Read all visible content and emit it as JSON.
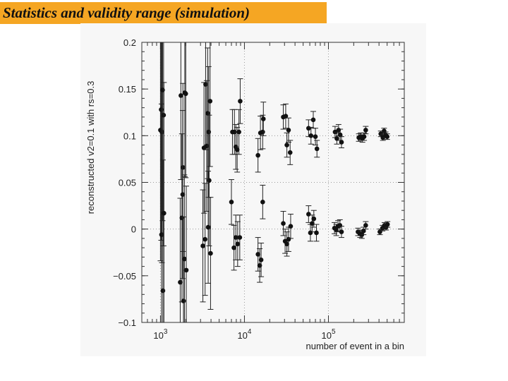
{
  "title": "Statistics and validity range   (simulation)",
  "chart_data": {
    "type": "scatter",
    "xlabel": "number of event in a bin",
    "ylabel": "reconstructed v2=0.1 with rs=0.3",
    "x_scale": "log",
    "xlim": [
      600,
      800000
    ],
    "ylim": [
      -0.1,
      0.2
    ],
    "grid": "dotted at x-decades and y=0.1, 0.05, 0",
    "yticks": [
      "-0.1",
      "-0.05",
      "0",
      "0.05",
      "0.1",
      "0.15",
      "0.2"
    ],
    "xticks": [
      "10^3",
      "10^4",
      "10^5"
    ],
    "series": [
      {
        "values": [
          {
            "x": 1000,
            "y": 0.106,
            "err": 0.14
          },
          {
            "x": 1020,
            "y": 0.128,
            "err": 0.14
          },
          {
            "x": 1040,
            "y": 0.104,
            "err": 0.14
          },
          {
            "x": 1060,
            "y": 0.149,
            "err": 0.14
          },
          {
            "x": 1090,
            "y": 0.122,
            "err": 0.14
          },
          {
            "x": 1750,
            "y": 0.143,
            "err": 0.09
          },
          {
            "x": 1850,
            "y": 0.066,
            "err": 0.09
          },
          {
            "x": 1950,
            "y": 0.146,
            "err": 0.09
          },
          {
            "x": 2000,
            "y": 0.145,
            "err": 0.09
          },
          {
            "x": 3300,
            "y": 0.087,
            "err": 0.07
          },
          {
            "x": 3450,
            "y": 0.155,
            "err": 0.07
          },
          {
            "x": 3550,
            "y": 0.089,
            "err": 0.07
          },
          {
            "x": 3650,
            "y": 0.124,
            "err": 0.07
          },
          {
            "x": 3750,
            "y": 0.104,
            "err": 0.07
          },
          {
            "x": 3900,
            "y": 0.137,
            "err": 0.07
          },
          {
            "x": 3800,
            "y": 0.052,
            "err": 0.07
          },
          {
            "x": 7200,
            "y": 0.104,
            "err": 0.024
          },
          {
            "x": 7600,
            "y": 0.104,
            "err": 0.024
          },
          {
            "x": 7900,
            "y": 0.088,
            "err": 0.024
          },
          {
            "x": 8200,
            "y": 0.085,
            "err": 0.024
          },
          {
            "x": 8600,
            "y": 0.104,
            "err": 0.024
          },
          {
            "x": 8900,
            "y": 0.137,
            "err": 0.024
          },
          {
            "x": 14500,
            "y": 0.079,
            "err": 0.018
          },
          {
            "x": 15500,
            "y": 0.103,
            "err": 0.018
          },
          {
            "x": 16500,
            "y": 0.104,
            "err": 0.018
          },
          {
            "x": 16800,
            "y": 0.118,
            "err": 0.018
          },
          {
            "x": 29000,
            "y": 0.12,
            "err": 0.013
          },
          {
            "x": 31000,
            "y": 0.121,
            "err": 0.013
          },
          {
            "x": 32000,
            "y": 0.09,
            "err": 0.013
          },
          {
            "x": 33500,
            "y": 0.106,
            "err": 0.013
          },
          {
            "x": 35000,
            "y": 0.082,
            "err": 0.013
          },
          {
            "x": 58000,
            "y": 0.108,
            "err": 0.009
          },
          {
            "x": 62000,
            "y": 0.1,
            "err": 0.009
          },
          {
            "x": 66000,
            "y": 0.117,
            "err": 0.009
          },
          {
            "x": 70000,
            "y": 0.099,
            "err": 0.009
          },
          {
            "x": 73000,
            "y": 0.086,
            "err": 0.009
          },
          {
            "x": 120000,
            "y": 0.104,
            "err": 0.006
          },
          {
            "x": 126000,
            "y": 0.097,
            "err": 0.006
          },
          {
            "x": 132000,
            "y": 0.106,
            "err": 0.006
          },
          {
            "x": 138000,
            "y": 0.101,
            "err": 0.006
          },
          {
            "x": 143000,
            "y": 0.093,
            "err": 0.006
          },
          {
            "x": 230000,
            "y": 0.098,
            "err": 0.004
          },
          {
            "x": 242000,
            "y": 0.099,
            "err": 0.004
          },
          {
            "x": 254000,
            "y": 0.097,
            "err": 0.004
          },
          {
            "x": 266000,
            "y": 0.099,
            "err": 0.004
          },
          {
            "x": 278000,
            "y": 0.106,
            "err": 0.004
          },
          {
            "x": 420000,
            "y": 0.102,
            "err": 0.003
          },
          {
            "x": 445000,
            "y": 0.098,
            "err": 0.003
          },
          {
            "x": 460000,
            "y": 0.105,
            "err": 0.003
          },
          {
            "x": 480000,
            "y": 0.101,
            "err": 0.003
          },
          {
            "x": 500000,
            "y": 0.099,
            "err": 0.003
          }
        ]
      },
      {
        "values": [
          {
            "x": 1030,
            "y": -0.006,
            "err": 0.14
          },
          {
            "x": 1070,
            "y": -0.066,
            "err": 0.14
          },
          {
            "x": 1100,
            "y": 0.017,
            "err": 0.14
          },
          {
            "x": 1720,
            "y": -0.057,
            "err": 0.09
          },
          {
            "x": 1800,
            "y": 0.012,
            "err": 0.09
          },
          {
            "x": 1840,
            "y": 0.037,
            "err": 0.09
          },
          {
            "x": 1880,
            "y": -0.077,
            "err": 0.09
          },
          {
            "x": 1930,
            "y": -0.032,
            "err": 0.09
          },
          {
            "x": 2030,
            "y": -0.044,
            "err": 0.09
          },
          {
            "x": 3200,
            "y": -0.018,
            "err": 0.06
          },
          {
            "x": 3400,
            "y": -0.011,
            "err": 0.06
          },
          {
            "x": 3700,
            "y": 0.002,
            "err": 0.06
          },
          {
            "x": 3950,
            "y": -0.026,
            "err": 0.06
          },
          {
            "x": 7000,
            "y": 0.029,
            "err": 0.024
          },
          {
            "x": 7500,
            "y": -0.02,
            "err": 0.024
          },
          {
            "x": 7900,
            "y": -0.009,
            "err": 0.024
          },
          {
            "x": 8300,
            "y": -0.016,
            "err": 0.024
          },
          {
            "x": 8800,
            "y": -0.009,
            "err": 0.024
          },
          {
            "x": 14500,
            "y": -0.027,
            "err": 0.018
          },
          {
            "x": 15200,
            "y": -0.039,
            "err": 0.018
          },
          {
            "x": 15800,
            "y": -0.033,
            "err": 0.018
          },
          {
            "x": 16500,
            "y": 0.029,
            "err": 0.018
          },
          {
            "x": 29000,
            "y": 0.006,
            "err": 0.013
          },
          {
            "x": 30500,
            "y": -0.013,
            "err": 0.013
          },
          {
            "x": 32000,
            "y": -0.016,
            "err": 0.013
          },
          {
            "x": 33500,
            "y": -0.011,
            "err": 0.013
          },
          {
            "x": 35500,
            "y": 0.003,
            "err": 0.013
          },
          {
            "x": 58000,
            "y": 0.016,
            "err": 0.009
          },
          {
            "x": 61000,
            "y": -0.004,
            "err": 0.009
          },
          {
            "x": 64000,
            "y": 0.006,
            "err": 0.009
          },
          {
            "x": 67000,
            "y": 0.011,
            "err": 0.009
          },
          {
            "x": 72000,
            "y": -0.004,
            "err": 0.009
          },
          {
            "x": 118000,
            "y": 0.001,
            "err": 0.006
          },
          {
            "x": 124000,
            "y": -0.001,
            "err": 0.006
          },
          {
            "x": 130000,
            "y": 0.003,
            "err": 0.006
          },
          {
            "x": 137000,
            "y": 0.004,
            "err": 0.006
          },
          {
            "x": 143000,
            "y": -0.003,
            "err": 0.006
          },
          {
            "x": 225000,
            "y": -0.003,
            "err": 0.004
          },
          {
            "x": 238000,
            "y": -0.005,
            "err": 0.004
          },
          {
            "x": 250000,
            "y": -0.006,
            "err": 0.004
          },
          {
            "x": 262000,
            "y": -0.002,
            "err": 0.004
          },
          {
            "x": 278000,
            "y": 0.004,
            "err": 0.004
          },
          {
            "x": 410000,
            "y": -0.003,
            "err": 0.003
          },
          {
            "x": 440000,
            "y": 0.001,
            "err": 0.003
          },
          {
            "x": 465000,
            "y": 0.004,
            "err": 0.003
          },
          {
            "x": 485000,
            "y": 0.002,
            "err": 0.003
          },
          {
            "x": 505000,
            "y": 0.005,
            "err": 0.003
          }
        ]
      }
    ]
  }
}
